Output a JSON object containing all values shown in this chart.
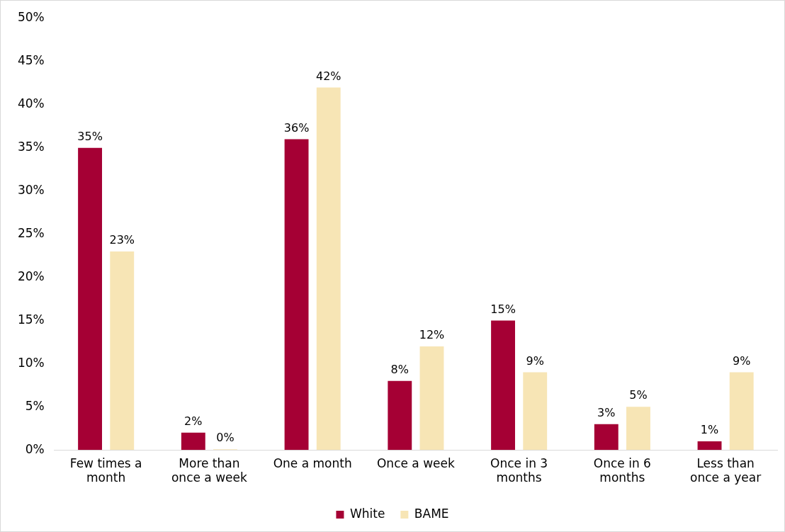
{
  "chart_data": {
    "type": "bar",
    "categories": [
      "Few times a month",
      "More than once a week",
      "One a month",
      "Once a week",
      "Once in 3 months",
      "Once in 6 months",
      "Less than once a year"
    ],
    "series": [
      {
        "name": "White",
        "color": "#a50034",
        "values": [
          35,
          2,
          36,
          8,
          15,
          3,
          1
        ],
        "value_labels": [
          "35%",
          "2%",
          "36%",
          "8%",
          "15%",
          "3%",
          "1%"
        ]
      },
      {
        "name": "BAME",
        "color": "#f7e5b5",
        "values": [
          23,
          0,
          42,
          12,
          9,
          5,
          9
        ],
        "value_labels": [
          "23%",
          "0%",
          "42%",
          "12%",
          "9%",
          "5%",
          "9%"
        ]
      }
    ],
    "ylim": [
      0,
      50
    ],
    "yticks": [
      {
        "value": 0,
        "label": "0%"
      },
      {
        "value": 5,
        "label": "5%"
      },
      {
        "value": 10,
        "label": "10%"
      },
      {
        "value": 15,
        "label": "15%"
      },
      {
        "value": 20,
        "label": "20%"
      },
      {
        "value": 25,
        "label": "25%"
      },
      {
        "value": 30,
        "label": "30%"
      },
      {
        "value": 35,
        "label": "35%"
      },
      {
        "value": 40,
        "label": "40%"
      },
      {
        "value": 45,
        "label": "45%"
      },
      {
        "value": 50,
        "label": "50%"
      }
    ],
    "grid": false,
    "legend": "bottom"
  }
}
